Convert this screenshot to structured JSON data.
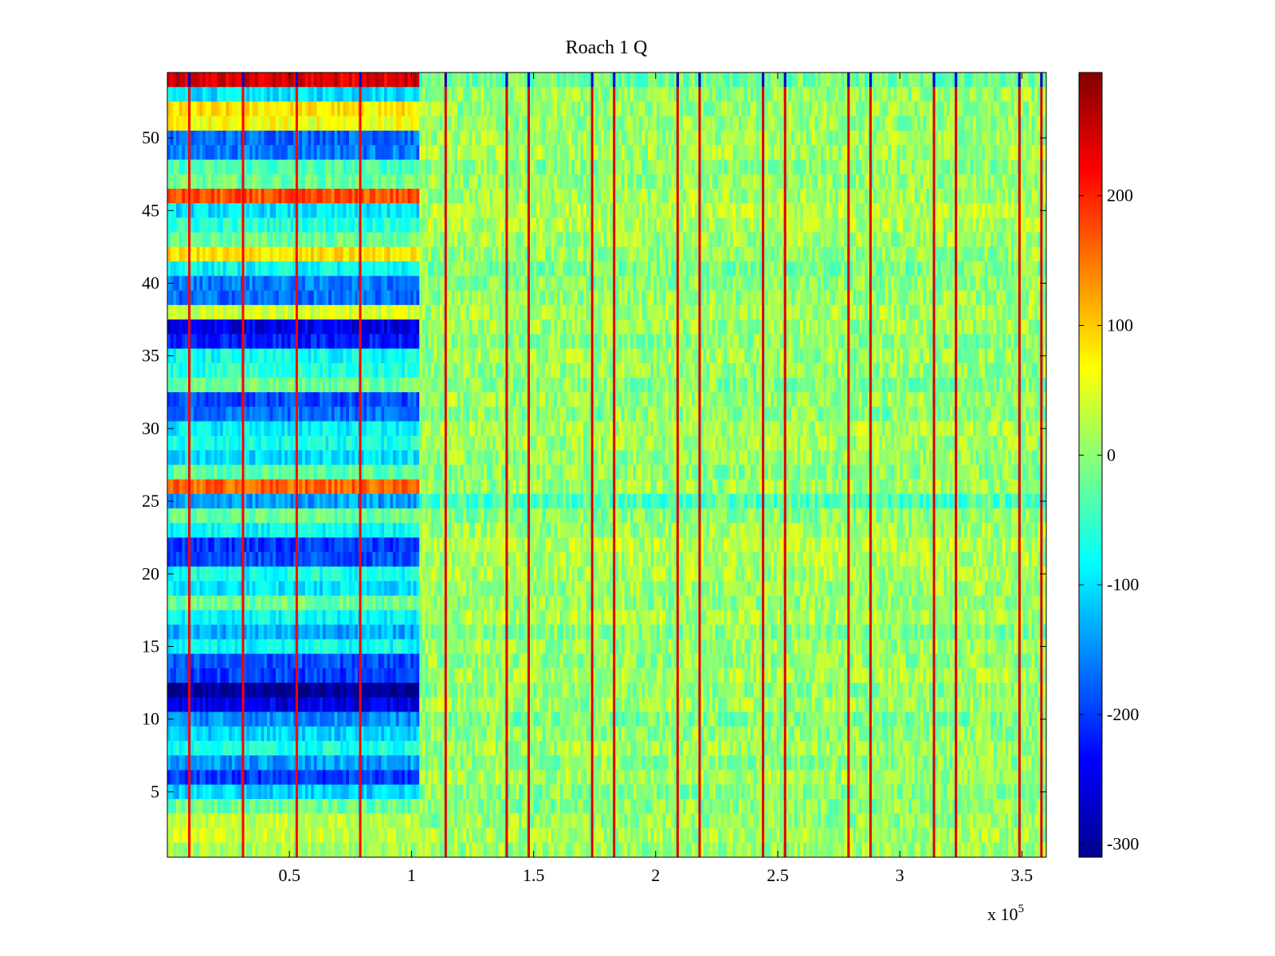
{
  "chart_data": {
    "type": "heatmap",
    "title": "Roach 1 Q",
    "xlabel": "",
    "ylabel": "",
    "x_multiplier_label": "x 10",
    "x_multiplier_exponent": "5",
    "xlim": [
      0,
      3.6
    ],
    "ylim": [
      0.5,
      54.5
    ],
    "rows": 54,
    "xticks": [
      0.5,
      1,
      1.5,
      2,
      2.5,
      3,
      3.5
    ],
    "xtick_labels": [
      "0.5",
      "1",
      "1.5",
      "2",
      "2.5",
      "3",
      "3.5"
    ],
    "yticks": [
      5,
      10,
      15,
      20,
      25,
      30,
      35,
      40,
      45,
      50
    ],
    "ytick_labels": [
      "5",
      "10",
      "15",
      "20",
      "25",
      "30",
      "35",
      "40",
      "45",
      "50"
    ],
    "colorbar": {
      "colormap": "jet",
      "range": [
        -310,
        295
      ],
      "ticks": [
        -300,
        -200,
        -100,
        0,
        100,
        200
      ],
      "tick_labels": [
        "-300",
        "-200",
        "-100",
        "0",
        "100",
        "200"
      ]
    },
    "regime_boundary_x": 1.03,
    "early_row_means": [
      15,
      35,
      30,
      -20,
      -110,
      -200,
      -140,
      -70,
      -110,
      -150,
      -250,
      -300,
      -200,
      -190,
      -80,
      -130,
      -80,
      -20,
      -100,
      -70,
      -190,
      -200,
      -80,
      -20,
      -140,
      160,
      -30,
      -100,
      -70,
      -90,
      -170,
      -190,
      -20,
      -60,
      -80,
      -220,
      -250,
      40,
      -170,
      -160,
      -80,
      80,
      -20,
      -60,
      -100,
      170,
      -20,
      -40,
      -160,
      -170,
      60,
      80,
      -100,
      240
    ],
    "late_row_means": [
      10,
      15,
      5,
      0,
      -5,
      15,
      0,
      10,
      5,
      -10,
      10,
      0,
      15,
      5,
      10,
      -5,
      20,
      5,
      10,
      15,
      20,
      25,
      10,
      0,
      -40,
      10,
      0,
      5,
      10,
      15,
      0,
      10,
      -5,
      5,
      10,
      0,
      10,
      15,
      5,
      0,
      -10,
      5,
      10,
      20,
      25,
      10,
      5,
      0,
      15,
      10,
      5,
      10,
      5,
      -20
    ],
    "spike_lines": [
      {
        "x": 0.09,
        "value": 220
      },
      {
        "x": 0.31,
        "value": 220
      },
      {
        "x": 0.53,
        "value": 220
      },
      {
        "x": 0.79,
        "value": 220
      },
      {
        "x": 1.14,
        "value": 240
      },
      {
        "x": 1.39,
        "value": 240
      },
      {
        "x": 1.48,
        "value": 240
      },
      {
        "x": 1.74,
        "value": 240
      },
      {
        "x": 1.83,
        "value": 240
      },
      {
        "x": 2.09,
        "value": 240
      },
      {
        "x": 2.18,
        "value": 240
      },
      {
        "x": 2.44,
        "value": 240
      },
      {
        "x": 2.53,
        "value": 240
      },
      {
        "x": 2.79,
        "value": 240
      },
      {
        "x": 2.88,
        "value": 240
      },
      {
        "x": 3.14,
        "value": 240
      },
      {
        "x": 3.23,
        "value": 240
      },
      {
        "x": 3.49,
        "value": 240
      },
      {
        "x": 3.58,
        "value": 240
      }
    ]
  }
}
